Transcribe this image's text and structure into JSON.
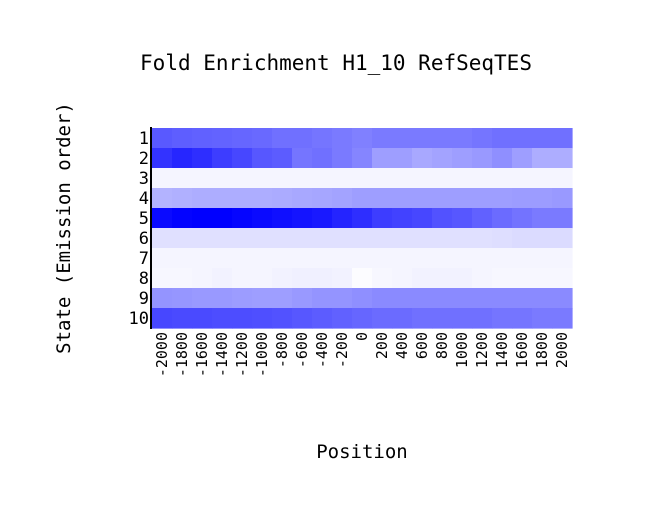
{
  "chart_data": {
    "type": "heatmap",
    "title": "Fold Enrichment H1_10 RefSeqTES",
    "xlabel": "Position",
    "ylabel": "State (Emission order)",
    "x": [
      -2000,
      -1800,
      -1600,
      -1400,
      -1200,
      -1000,
      -800,
      -600,
      -400,
      -200,
      0,
      200,
      400,
      600,
      800,
      1000,
      1200,
      1400,
      1600,
      1800,
      2000
    ],
    "y": [
      1,
      2,
      3,
      4,
      5,
      6,
      7,
      8,
      9,
      10
    ],
    "value_scale": "normalized intensity 0 (white) to 1 (blue)",
    "color_low": "#ffffff",
    "color_high": "#0000ff",
    "grid": false,
    "legend": "none",
    "values": [
      [
        0.65,
        0.63,
        0.62,
        0.61,
        0.6,
        0.59,
        0.56,
        0.56,
        0.54,
        0.52,
        0.5,
        0.52,
        0.52,
        0.52,
        0.52,
        0.52,
        0.54,
        0.56,
        0.56,
        0.56,
        0.56
      ],
      [
        0.8,
        0.85,
        0.82,
        0.76,
        0.72,
        0.66,
        0.64,
        0.54,
        0.56,
        0.52,
        0.48,
        0.38,
        0.38,
        0.34,
        0.36,
        0.38,
        0.4,
        0.44,
        0.38,
        0.32,
        0.32
      ],
      [
        0.04,
        0.04,
        0.04,
        0.04,
        0.04,
        0.04,
        0.04,
        0.04,
        0.04,
        0.04,
        0.04,
        0.04,
        0.04,
        0.04,
        0.04,
        0.04,
        0.04,
        0.04,
        0.04,
        0.04,
        0.04
      ],
      [
        0.3,
        0.31,
        0.32,
        0.32,
        0.32,
        0.32,
        0.33,
        0.34,
        0.35,
        0.36,
        0.38,
        0.38,
        0.38,
        0.38,
        0.38,
        0.38,
        0.38,
        0.38,
        0.39,
        0.39,
        0.4
      ],
      [
        0.96,
        0.99,
        1.0,
        1.0,
        0.98,
        0.96,
        0.94,
        0.92,
        0.9,
        0.86,
        0.82,
        0.76,
        0.74,
        0.72,
        0.68,
        0.66,
        0.62,
        0.58,
        0.55,
        0.52,
        0.52
      ],
      [
        0.12,
        0.12,
        0.12,
        0.12,
        0.12,
        0.12,
        0.12,
        0.12,
        0.12,
        0.12,
        0.12,
        0.12,
        0.12,
        0.12,
        0.12,
        0.12,
        0.12,
        0.13,
        0.14,
        0.14,
        0.14
      ],
      [
        0.04,
        0.04,
        0.04,
        0.04,
        0.04,
        0.04,
        0.04,
        0.04,
        0.04,
        0.04,
        0.04,
        0.04,
        0.04,
        0.04,
        0.04,
        0.04,
        0.04,
        0.04,
        0.04,
        0.04,
        0.04
      ],
      [
        0.03,
        0.03,
        0.04,
        0.05,
        0.04,
        0.04,
        0.05,
        0.06,
        0.06,
        0.05,
        0.01,
        0.03,
        0.04,
        0.05,
        0.05,
        0.05,
        0.04,
        0.03,
        0.03,
        0.03,
        0.03
      ],
      [
        0.42,
        0.41,
        0.4,
        0.4,
        0.39,
        0.38,
        0.38,
        0.4,
        0.42,
        0.42,
        0.44,
        0.46,
        0.46,
        0.46,
        0.46,
        0.46,
        0.46,
        0.46,
        0.46,
        0.46,
        0.46
      ],
      [
        0.72,
        0.71,
        0.71,
        0.7,
        0.7,
        0.69,
        0.68,
        0.66,
        0.64,
        0.62,
        0.6,
        0.58,
        0.58,
        0.56,
        0.56,
        0.56,
        0.56,
        0.54,
        0.54,
        0.52,
        0.52
      ]
    ]
  }
}
